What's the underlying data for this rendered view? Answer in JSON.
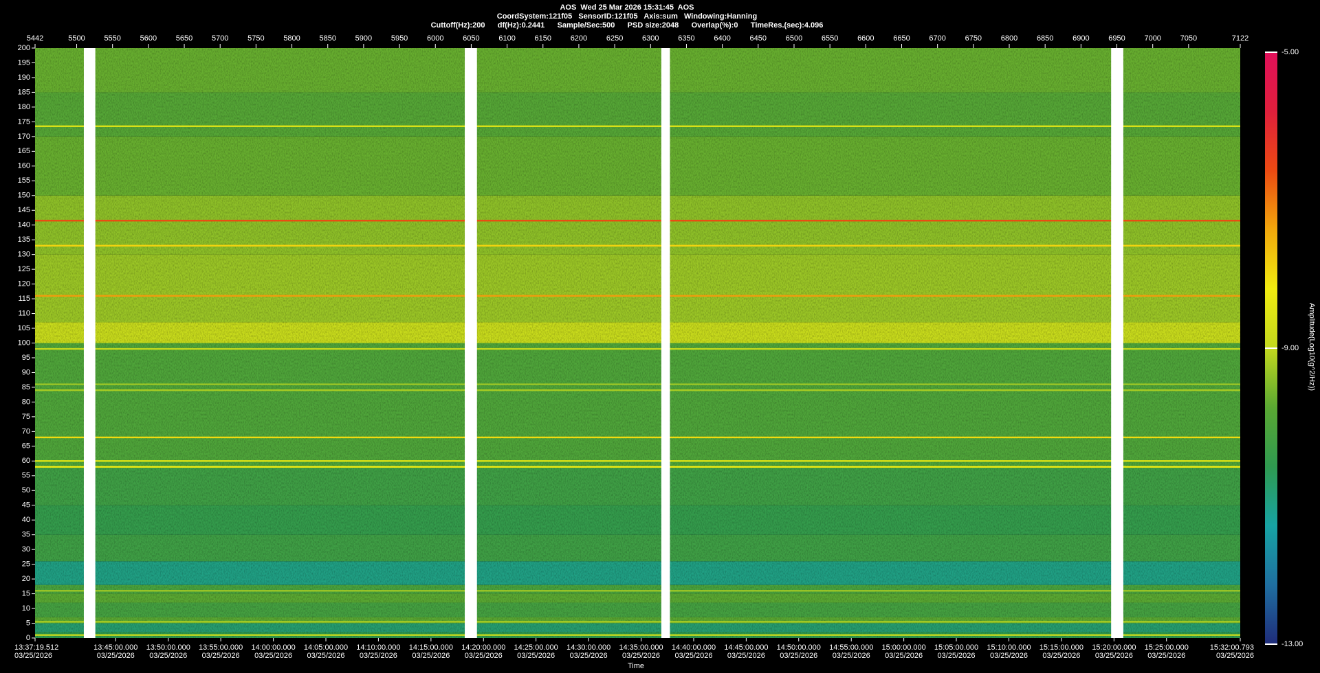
{
  "chart_data": {
    "type": "spectrogram",
    "title": "AOS  Wed 25 Mar 2026 15:31:45  AOS",
    "subtitle": [
      "CoordSystem:121f05   SensorID:121f05   Axis:sum   Windowing:Hanning",
      "Cuttoff(Hz):200      df(Hz):0.2441      Sample/Sec:500      PSD size:2048      Overlap(%):0      TimeRes.(sec):4.096"
    ],
    "xlabel": "Time",
    "zlabel": "Amplitude(Log10(g^2/Hz))",
    "xlim": [
      5442,
      7122
    ],
    "xticks": [
      5442,
      5500,
      5550,
      5600,
      5650,
      5700,
      5750,
      5800,
      5850,
      5900,
      5950,
      6000,
      6050,
      6100,
      6150,
      6200,
      6250,
      6300,
      6350,
      6400,
      6450,
      6500,
      6550,
      6600,
      6650,
      6700,
      6750,
      6800,
      6850,
      6900,
      6950,
      7000,
      7050,
      7122
    ],
    "time_ticks": [
      {
        "value": 5442,
        "label": "13:37:19.512",
        "date": "03/25/2026"
      },
      {
        "value": 5554.4,
        "label": "13:45:00.000",
        "date": "03/25/2026"
      },
      {
        "value": 5627.7,
        "label": "13:50:00.000",
        "date": "03/25/2026"
      },
      {
        "value": 5700.9,
        "label": "13:55:00.000",
        "date": "03/25/2026"
      },
      {
        "value": 5774.2,
        "label": "14:00:00.000",
        "date": "03/25/2026"
      },
      {
        "value": 5847.4,
        "label": "14:05:00.000",
        "date": "03/25/2026"
      },
      {
        "value": 5920.6,
        "label": "14:10:00.000",
        "date": "03/25/2026"
      },
      {
        "value": 5993.9,
        "label": "14:15:00.000",
        "date": "03/25/2026"
      },
      {
        "value": 6067.1,
        "label": "14:20:00.000",
        "date": "03/25/2026"
      },
      {
        "value": 6140.3,
        "label": "14:25:00.000",
        "date": "03/25/2026"
      },
      {
        "value": 6213.6,
        "label": "14:30:00.000",
        "date": "03/25/2026"
      },
      {
        "value": 6286.8,
        "label": "14:35:00.000",
        "date": "03/25/2026"
      },
      {
        "value": 6360.1,
        "label": "14:40:00.000",
        "date": "03/25/2026"
      },
      {
        "value": 6433.3,
        "label": "14:45:00.000",
        "date": "03/25/2026"
      },
      {
        "value": 6506.5,
        "label": "14:50:00.000",
        "date": "03/25/2026"
      },
      {
        "value": 6579.8,
        "label": "14:55:00.000",
        "date": "03/25/2026"
      },
      {
        "value": 6653.0,
        "label": "15:00:00.000",
        "date": "03/25/2026"
      },
      {
        "value": 6726.2,
        "label": "15:05:00.000",
        "date": "03/25/2026"
      },
      {
        "value": 6799.5,
        "label": "15:10:00.000",
        "date": "03/25/2026"
      },
      {
        "value": 6872.7,
        "label": "15:15:00.000",
        "date": "03/25/2026"
      },
      {
        "value": 6946.0,
        "label": "15:20:00.000",
        "date": "03/25/2026"
      },
      {
        "value": 7019.2,
        "label": "15:25:00.000",
        "date": "03/25/2026"
      },
      {
        "value": 7122,
        "label": "15:32:00.793",
        "date": "03/25/2026"
      }
    ],
    "ylim": [
      0,
      200
    ],
    "yticks": [
      0,
      5,
      10,
      15,
      20,
      25,
      30,
      35,
      40,
      45,
      50,
      55,
      60,
      65,
      70,
      75,
      80,
      85,
      90,
      95,
      100,
      105,
      110,
      115,
      120,
      125,
      130,
      135,
      140,
      145,
      150,
      155,
      160,
      165,
      170,
      175,
      180,
      185,
      190,
      195,
      200
    ],
    "zlim": [
      -13,
      -5
    ],
    "zticks": [
      {
        "value": -13,
        "label": "-13.00"
      },
      {
        "value": -9,
        "label": "-9.00"
      },
      {
        "value": -5,
        "label": "-5.00"
      }
    ],
    "colormap": [
      "#1f2c7a",
      "#1f6fa0",
      "#17a3a3",
      "#2f9a50",
      "#5aa832",
      "#c2d81e",
      "#f2ec10",
      "#f2a80c",
      "#ec4a12",
      "#e01f3c",
      "#e0105a"
    ],
    "bands": [
      {
        "from": 0,
        "to": 2,
        "value": -10.6
      },
      {
        "from": 2,
        "to": 5,
        "value": -10.9
      },
      {
        "from": 5,
        "to": 7,
        "value": -9.8
      },
      {
        "from": 7,
        "to": 12,
        "value": -10.2
      },
      {
        "from": 12,
        "to": 15,
        "value": -9.8
      },
      {
        "from": 15,
        "to": 18,
        "value": -10.1
      },
      {
        "from": 18,
        "to": 26,
        "value": -11.1
      },
      {
        "from": 26,
        "to": 35,
        "value": -10.3
      },
      {
        "from": 35,
        "to": 45,
        "value": -10.5
      },
      {
        "from": 45,
        "to": 58,
        "value": -10.3
      },
      {
        "from": 58,
        "to": 100,
        "value": -10.0
      },
      {
        "from": 100,
        "to": 107,
        "value": -8.9
      },
      {
        "from": 107,
        "to": 130,
        "value": -9.3
      },
      {
        "from": 130,
        "to": 150,
        "value": -9.4
      },
      {
        "from": 150,
        "to": 170,
        "value": -9.7
      },
      {
        "from": 170,
        "to": 185,
        "value": -9.9
      },
      {
        "from": 185,
        "to": 200,
        "value": -9.7
      }
    ],
    "lines": [
      {
        "freq": 1,
        "value": -9.0
      },
      {
        "freq": 5.5,
        "value": -9.2
      },
      {
        "freq": 16,
        "value": -9.3
      },
      {
        "freq": 58,
        "value": -8.2
      },
      {
        "freq": 60,
        "value": -8.6
      },
      {
        "freq": 68,
        "value": -8.0
      },
      {
        "freq": 84,
        "value": -9.2
      },
      {
        "freq": 86,
        "value": -9.3
      },
      {
        "freq": 98,
        "value": -9.0
      },
      {
        "freq": 116,
        "value": -7.3
      },
      {
        "freq": 133,
        "value": -7.9
      },
      {
        "freq": 141.5,
        "value": -6.6
      },
      {
        "freq": 173.5,
        "value": -8.6
      }
    ],
    "gaps": [
      [
        5510,
        5526
      ],
      [
        6041,
        6058
      ],
      [
        6315,
        6327
      ],
      [
        6942,
        6959
      ]
    ]
  }
}
